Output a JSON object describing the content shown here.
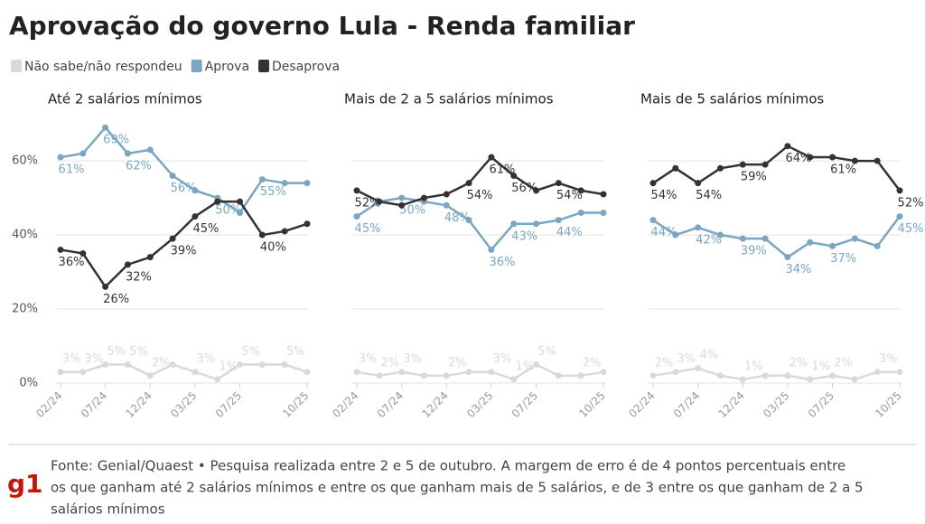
{
  "header": {
    "title": "Aprovação do governo Lula - Renda familiar"
  },
  "footer": {
    "logo": "g1",
    "source": [
      "Fonte: Genial/Quaest • Pesquisa realizada entre 2 e 5 de outubro. A margem de erro é de 4 pontos percentuais entre",
      "os que ganham até 2 salários mínimos e entre os que ganham mais de 5 salários, e de 3 entre os que ganham de 2 a 5",
      "salários mínimos"
    ]
  },
  "chart_data": [
    {
      "type": "line",
      "title": "Até 2 salários mínimos",
      "categories": [
        "02/24",
        null,
        "07/24",
        null,
        "12/24",
        null,
        "03/25",
        null,
        "07/25",
        null,
        null,
        "10/25"
      ],
      "ylim": [
        0,
        71
      ],
      "yticks": [
        {
          "value": 0,
          "label": "0%"
        },
        {
          "value": 20,
          "label": "20%"
        },
        {
          "value": 40,
          "label": "40%"
        },
        {
          "value": 60,
          "label": "60%"
        }
      ],
      "grid": true,
      "series": [
        {
          "name": "Não sabe/não respondeu",
          "color": "#d9d9d9",
          "values": [
            3,
            3,
            5,
            5,
            2,
            5,
            3,
            1,
            5,
            5,
            5,
            3
          ],
          "value_labels": [
            "3%",
            "3%",
            "5%",
            "5%",
            "2%",
            null,
            "3%",
            "1%",
            "5%",
            null,
            "5%",
            null
          ]
        },
        {
          "name": "Aprova",
          "color": "#7aa6c2",
          "values": [
            61,
            62,
            69,
            62,
            63,
            56,
            52,
            50,
            46,
            55,
            54,
            54
          ],
          "value_labels": [
            "61%",
            null,
            "69%",
            "62%",
            null,
            "56%",
            null,
            "50%",
            null,
            "55%",
            null,
            null
          ]
        },
        {
          "name": "Desaprova",
          "color": "#333333",
          "values": [
            36,
            35,
            26,
            32,
            34,
            39,
            45,
            49,
            49,
            40,
            41,
            43
          ],
          "value_labels": [
            "36%",
            null,
            "26%",
            "32%",
            null,
            "39%",
            "45%",
            null,
            null,
            "40%",
            null,
            null
          ]
        }
      ]
    },
    {
      "type": "line",
      "title": "Mais de 2 a 5 salários mínimos",
      "categories": [
        "02/24",
        null,
        "07/24",
        null,
        "12/24",
        null,
        "03/25",
        null,
        "07/25",
        null,
        null,
        "10/25"
      ],
      "ylim": [
        0,
        71
      ],
      "series": [
        {
          "name": "Não sabe/não respondeu",
          "color": "#d9d9d9",
          "values": [
            3,
            2,
            3,
            2,
            2,
            3,
            3,
            1,
            5,
            2,
            2,
            3
          ],
          "value_labels": [
            "3%",
            "2%",
            "3%",
            null,
            "2%",
            null,
            "3%",
            "1%",
            "5%",
            null,
            "2%",
            null
          ]
        },
        {
          "name": "Aprova",
          "color": "#7aa6c2",
          "values": [
            45,
            49,
            50,
            49,
            48,
            44,
            36,
            43,
            43,
            44,
            46,
            46
          ],
          "value_labels": [
            "45%",
            null,
            "50%",
            null,
            "48%",
            null,
            "36%",
            "43%",
            null,
            "44%",
            null,
            null
          ]
        },
        {
          "name": "Desaprova",
          "color": "#333333",
          "values": [
            52,
            49,
            48,
            50,
            51,
            54,
            61,
            56,
            52,
            54,
            52,
            51
          ],
          "value_labels": [
            "52%",
            null,
            null,
            null,
            null,
            "54%",
            "61%",
            "56%",
            null,
            "54%",
            null,
            null
          ]
        }
      ]
    },
    {
      "type": "line",
      "title": "Mais de 5 salários mínimos",
      "categories": [
        "02/24",
        null,
        "07/24",
        null,
        "12/24",
        null,
        "03/25",
        null,
        "07/25",
        null,
        null,
        "10/25"
      ],
      "ylim": [
        0,
        71
      ],
      "series": [
        {
          "name": "Não sabe/não respondeu",
          "color": "#d9d9d9",
          "values": [
            2,
            3,
            4,
            2,
            1,
            2,
            2,
            1,
            2,
            1,
            3,
            3
          ],
          "value_labels": [
            "2%",
            "3%",
            "4%",
            null,
            "1%",
            null,
            "2%",
            "1%",
            "2%",
            null,
            "3%",
            null
          ]
        },
        {
          "name": "Aprova",
          "color": "#7aa6c2",
          "values": [
            44,
            40,
            42,
            40,
            39,
            39,
            34,
            38,
            37,
            39,
            37,
            45
          ],
          "value_labels": [
            "44%",
            null,
            "42%",
            null,
            "39%",
            null,
            "34%",
            null,
            "37%",
            null,
            null,
            "45%"
          ]
        },
        {
          "name": "Desaprova",
          "color": "#333333",
          "values": [
            54,
            58,
            54,
            58,
            59,
            59,
            64,
            61,
            61,
            60,
            60,
            52
          ],
          "value_labels": [
            "54%",
            null,
            "54%",
            null,
            "59%",
            null,
            "64%",
            null,
            "61%",
            null,
            null,
            "52%"
          ]
        }
      ]
    }
  ]
}
